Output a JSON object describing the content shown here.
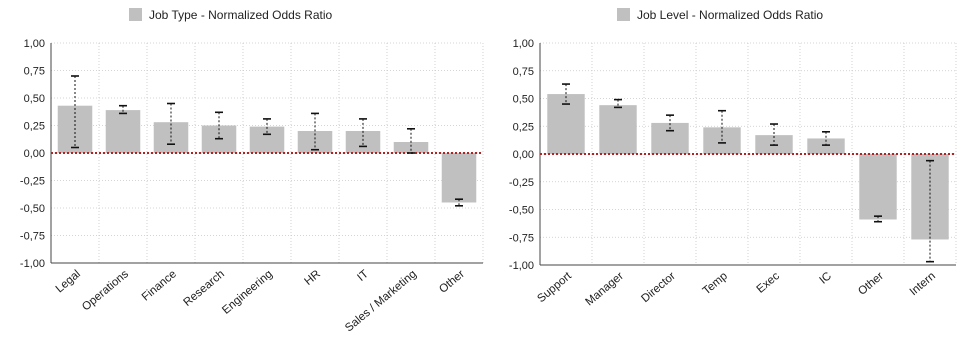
{
  "chart_data": [
    {
      "type": "bar",
      "legend": "Job Type - Normalized Odds Ratio",
      "legend_position": "top-center",
      "ylim": [
        -1.0,
        1.0
      ],
      "yticks": [
        "1,00",
        "0,75",
        "0,50",
        "0,25",
        "0,00",
        "-0,25",
        "-0,50",
        "-0,75",
        "-1,00"
      ],
      "grid": true,
      "categories": [
        "Legal",
        "Operations",
        "Finance",
        "Research",
        "Engineering",
        "HR",
        "IT",
        "Sales / Marketing",
        "Other"
      ],
      "values": [
        0.43,
        0.39,
        0.28,
        0.25,
        0.24,
        0.2,
        0.2,
        0.1,
        -0.45
      ],
      "err_low": [
        0.05,
        0.36,
        0.08,
        0.13,
        0.17,
        0.03,
        0.06,
        0.0,
        -0.48
      ],
      "err_high": [
        0.7,
        0.43,
        0.45,
        0.37,
        0.31,
        0.36,
        0.31,
        0.22,
        -0.42
      ],
      "colors": {
        "bar": "#c0c0c0",
        "zero_line": "#b22222",
        "error": "#111111"
      }
    },
    {
      "type": "bar",
      "legend": "Job Level - Normalized Odds Ratio",
      "legend_position": "top-center",
      "ylim": [
        -1.0,
        1.0
      ],
      "yticks": [
        "1,00",
        "0,75",
        "0,50",
        "0,25",
        "0,00",
        "-0,25",
        "-0,50",
        "-0,75",
        "-1,00"
      ],
      "grid": true,
      "categories": [
        "Support",
        "Manager",
        "Director",
        "Temp",
        "Exec",
        "IC",
        "Other",
        "Intern"
      ],
      "values": [
        0.54,
        0.44,
        0.28,
        0.24,
        0.17,
        0.14,
        -0.59,
        -0.77
      ],
      "err_low": [
        0.45,
        0.42,
        0.21,
        0.1,
        0.08,
        0.08,
        -0.61,
        -0.97
      ],
      "err_high": [
        0.63,
        0.49,
        0.35,
        0.39,
        0.27,
        0.2,
        -0.56,
        -0.06
      ],
      "colors": {
        "bar": "#c0c0c0",
        "zero_line": "#b22222",
        "error": "#111111"
      }
    }
  ]
}
